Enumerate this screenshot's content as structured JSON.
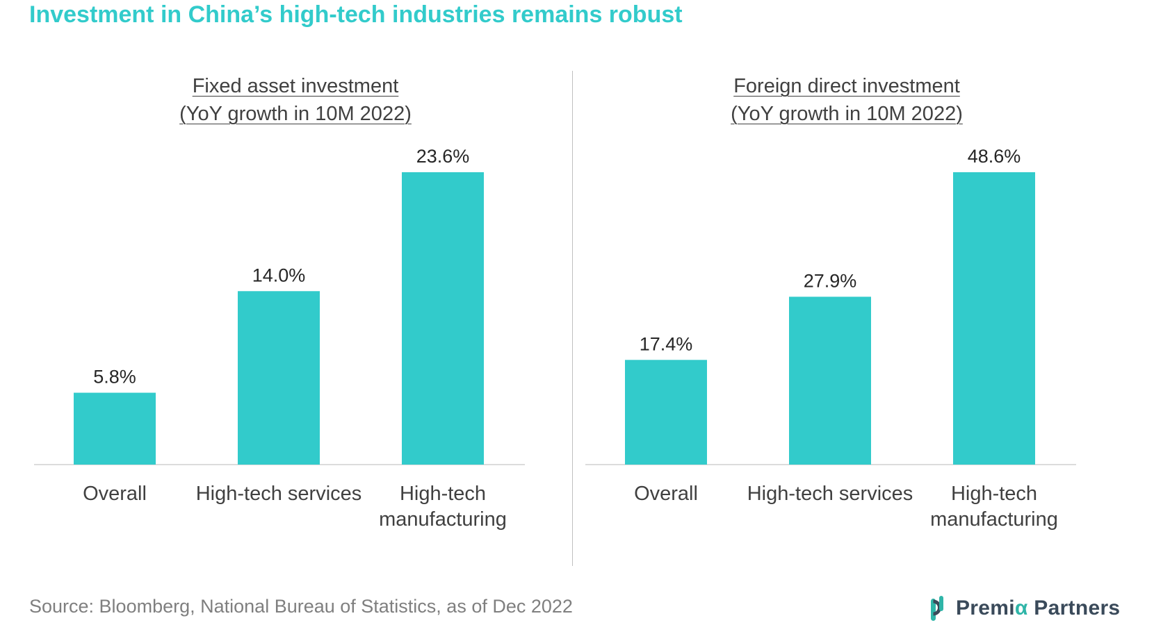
{
  "title": "Investment in China’s high-tech industries remains robust",
  "source": "Source: Bloomberg, National Bureau of Statistics, as of Dec 2022",
  "logo": {
    "text_a": "Premi",
    "text_alpha": "α",
    "text_b": " Partners"
  },
  "colors": {
    "title": "#32cbcb",
    "bar": "#32cbcb",
    "source": "#7f7f7f"
  },
  "chart_data": [
    {
      "type": "bar",
      "title_line1": "Fixed asset investment",
      "title_line2": "(YoY growth in 10M 2022)",
      "categories": [
        [
          "Overall"
        ],
        [
          "High-tech services"
        ],
        [
          "High-tech",
          "manufacturing"
        ]
      ],
      "values": [
        5.8,
        14.0,
        23.6
      ],
      "value_labels": [
        "5.8%",
        "14.0%",
        "23.6%"
      ],
      "ylim": [
        0,
        23.6
      ],
      "grid": false
    },
    {
      "type": "bar",
      "title_line1": "Foreign direct investment",
      "title_line2": "(YoY growth in 10M 2022)",
      "categories": [
        [
          "Overall"
        ],
        [
          "High-tech services"
        ],
        [
          "High-tech",
          "manufacturing"
        ]
      ],
      "values": [
        17.4,
        27.9,
        48.6
      ],
      "value_labels": [
        "17.4%",
        "27.9%",
        "48.6%"
      ],
      "ylim": [
        0,
        48.6
      ],
      "grid": false
    }
  ]
}
